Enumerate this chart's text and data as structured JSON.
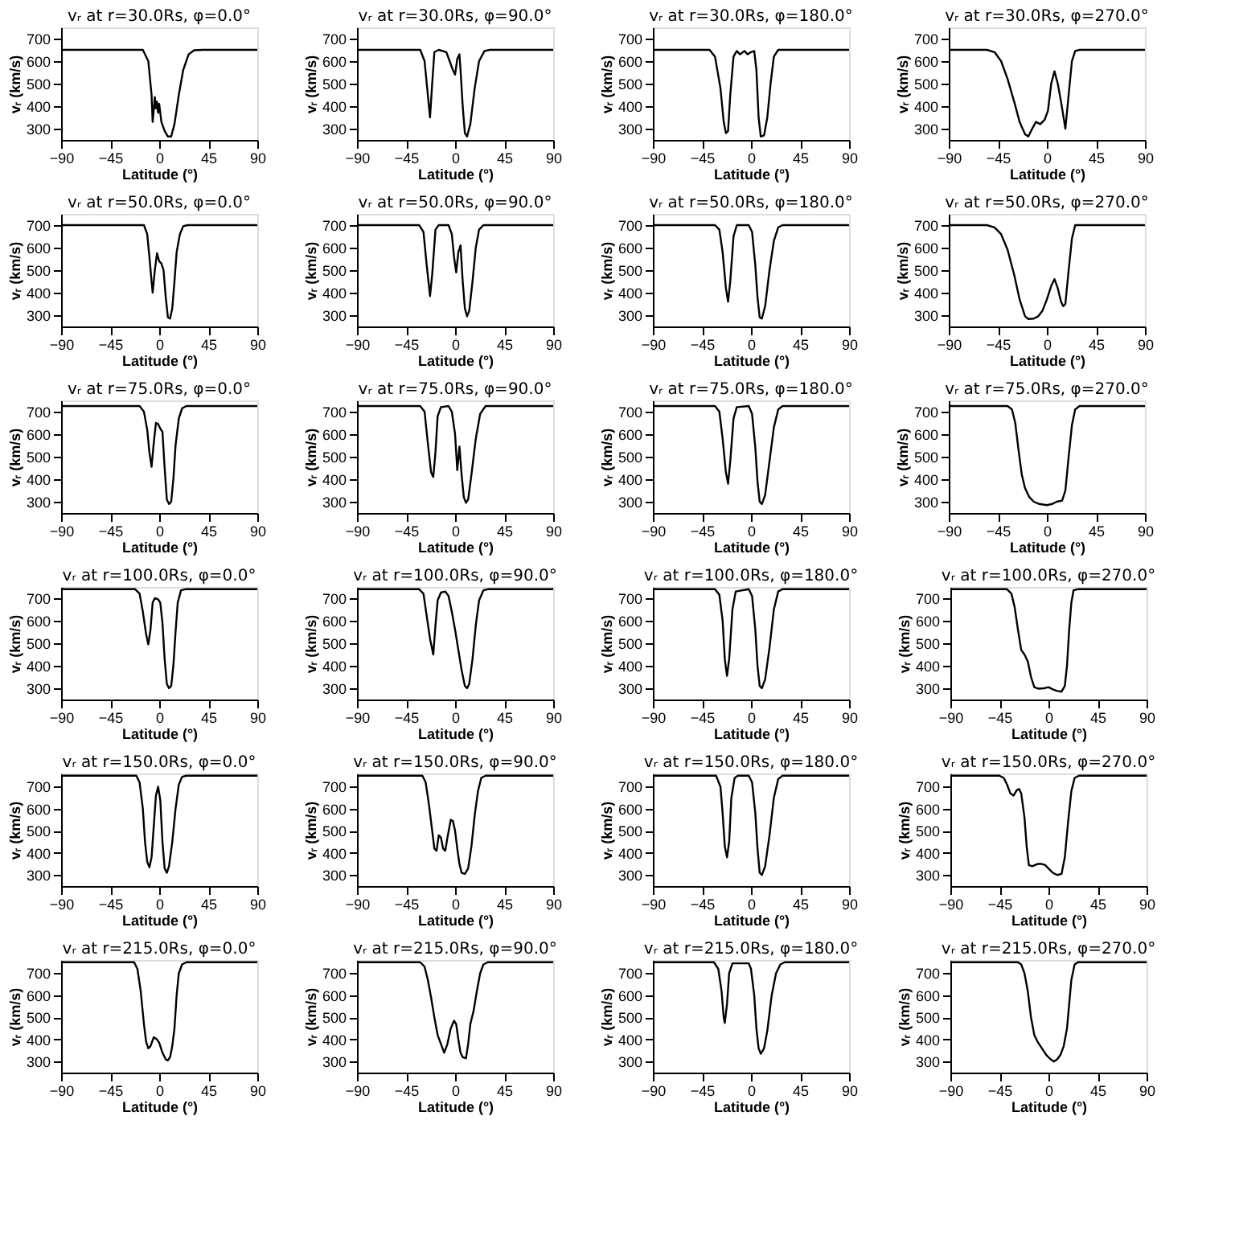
{
  "chart_data": [
    {
      "type": "line",
      "title": "vᵣ at r=30.0Rs, φ=0.0°",
      "xlabel": "Latitude (°)",
      "ylabel": "vᵣ (km/s)",
      "xlim": [
        -90,
        90
      ],
      "xticks": [
        -90,
        -45,
        0,
        45,
        90
      ],
      "ylim": [
        250,
        750
      ],
      "yticks": [
        300,
        400,
        500,
        600,
        700
      ],
      "grid": false,
      "color": "#000000",
      "x": [
        -90,
        -15,
        -10,
        -7,
        -6,
        -4,
        -3,
        -2,
        -1,
        0,
        2,
        5,
        8,
        11,
        14,
        18,
        22,
        27,
        32,
        40,
        90
      ],
      "values": [
        650,
        650,
        600,
        450,
        330,
        440,
        390,
        420,
        370,
        410,
        330,
        290,
        265,
        265,
        320,
        450,
        560,
        630,
        648,
        650,
        650
      ]
    },
    {
      "type": "line",
      "title": "vᵣ at r=30.0Rs, φ=90.0°",
      "xlabel": "Latitude (°)",
      "ylabel": "vᵣ (km/s)",
      "xlim": [
        -90,
        90
      ],
      "xticks": [
        -90,
        -45,
        0,
        45,
        90
      ],
      "ylim": [
        250,
        750
      ],
      "yticks": [
        300,
        400,
        500,
        600,
        700
      ],
      "grid": false,
      "color": "#000000",
      "x": [
        -90,
        -32,
        -28,
        -25,
        -23,
        -21,
        -19,
        -15,
        -8,
        -5,
        -2,
        0,
        2,
        4,
        5,
        7,
        9,
        11,
        14,
        18,
        22,
        27,
        32,
        90
      ],
      "values": [
        650,
        650,
        600,
        450,
        350,
        500,
        640,
        650,
        640,
        600,
        560,
        540,
        610,
        630,
        560,
        400,
        280,
        265,
        320,
        480,
        600,
        645,
        650,
        650
      ]
    },
    {
      "type": "line",
      "title": "vᵣ at r=30.0Rs, φ=180.0°",
      "xlabel": "Latitude (°)",
      "ylabel": "vᵣ (km/s)",
      "xlim": [
        -90,
        90
      ],
      "xticks": [
        -90,
        -45,
        0,
        45,
        90
      ],
      "ylim": [
        250,
        750
      ],
      "yticks": [
        300,
        400,
        500,
        600,
        700
      ],
      "grid": false,
      "color": "#000000",
      "x": [
        -90,
        -38,
        -33,
        -28,
        -25,
        -23,
        -21,
        -19,
        -16,
        -13,
        -10,
        -6,
        -3,
        0,
        3,
        5,
        7,
        9,
        12,
        15,
        18,
        21,
        25,
        90
      ],
      "values": [
        650,
        650,
        620,
        480,
        330,
        280,
        290,
        450,
        620,
        645,
        630,
        645,
        630,
        640,
        645,
        560,
        350,
        265,
        270,
        350,
        500,
        620,
        650,
        650
      ]
    },
    {
      "type": "line",
      "title": "vᵣ at r=30.0Rs, φ=270.0°",
      "xlabel": "Latitude (°)",
      "ylabel": "vᵣ (km/s)",
      "xlim": [
        -90,
        90
      ],
      "xticks": [
        -90,
        -45,
        0,
        45,
        90
      ],
      "ylim": [
        250,
        750
      ],
      "yticks": [
        300,
        400,
        500,
        600,
        700
      ],
      "grid": false,
      "color": "#000000",
      "x": [
        -90,
        -55,
        -48,
        -42,
        -36,
        -30,
        -25,
        -20,
        -17,
        -14,
        -10,
        -6,
        -2,
        1,
        4,
        7,
        10,
        13,
        16,
        17,
        20,
        23,
        26,
        30,
        90
      ],
      "values": [
        650,
        650,
        640,
        600,
        520,
        420,
        330,
        275,
        265,
        295,
        330,
        320,
        340,
        380,
        500,
        555,
        500,
        420,
        330,
        300,
        450,
        600,
        645,
        650,
        650
      ]
    },
    {
      "type": "line",
      "title": "vᵣ at r=50.0Rs, φ=0.0°",
      "xlabel": "Latitude (°)",
      "ylabel": "vᵣ (km/s)",
      "xlim": [
        -90,
        90
      ],
      "xticks": [
        -90,
        -45,
        0,
        45,
        90
      ],
      "ylim": [
        250,
        750
      ],
      "yticks": [
        300,
        400,
        500,
        600,
        700
      ],
      "grid": false,
      "color": "#000000",
      "x": [
        -90,
        -14,
        -11,
        -9,
        -7,
        -6,
        -4,
        -2,
        0,
        2,
        4,
        6,
        8,
        10,
        12,
        14,
        16,
        19,
        22,
        26,
        90
      ],
      "values": [
        700,
        700,
        660,
        560,
        450,
        400,
        500,
        575,
        540,
        530,
        500,
        380,
        290,
        285,
        330,
        450,
        580,
        660,
        695,
        700,
        700
      ]
    },
    {
      "type": "line",
      "title": "vᵣ at r=50.0Rs, φ=90.0°",
      "xlabel": "Latitude (°)",
      "ylabel": "vᵣ (km/s)",
      "xlim": [
        -90,
        90
      ],
      "xticks": [
        -90,
        -45,
        0,
        45,
        90
      ],
      "ylim": [
        250,
        750
      ],
      "yticks": [
        300,
        400,
        500,
        600,
        700
      ],
      "grid": false,
      "color": "#000000",
      "x": [
        -90,
        -33,
        -29,
        -26,
        -23,
        -21,
        -18,
        -15,
        -6,
        -3,
        -1,
        1,
        3,
        5,
        7,
        9,
        11,
        13,
        16,
        19,
        22,
        26,
        90
      ],
      "values": [
        700,
        700,
        670,
        520,
        385,
        480,
        680,
        700,
        700,
        660,
        560,
        490,
        580,
        610,
        450,
        330,
        295,
        320,
        450,
        600,
        680,
        700,
        700
      ]
    },
    {
      "type": "line",
      "title": "vᵣ at r=50.0Rs, φ=180.0°",
      "xlabel": "Latitude (°)",
      "ylabel": "vᵣ (km/s)",
      "xlim": [
        -90,
        90
      ],
      "xticks": [
        -90,
        -45,
        0,
        45,
        90
      ],
      "ylim": [
        250,
        750
      ],
      "yticks": [
        300,
        400,
        500,
        600,
        700
      ],
      "grid": false,
      "color": "#000000",
      "x": [
        -90,
        -33,
        -29,
        -26,
        -23,
        -21,
        -19,
        -16,
        -13,
        -2,
        1,
        4,
        6,
        8,
        10,
        13,
        17,
        21,
        25,
        29,
        90
      ],
      "values": [
        700,
        700,
        680,
        580,
        420,
        360,
        450,
        650,
        700,
        700,
        670,
        520,
        380,
        290,
        285,
        340,
        500,
        630,
        690,
        700,
        700
      ]
    },
    {
      "type": "line",
      "title": "vᵣ at r=50.0Rs, φ=270.0°",
      "xlabel": "Latitude (°)",
      "ylabel": "vᵣ (km/s)",
      "xlim": [
        -90,
        90
      ],
      "xticks": [
        -90,
        -45,
        0,
        45,
        90
      ],
      "ylim": [
        250,
        750
      ],
      "yticks": [
        300,
        400,
        500,
        600,
        700
      ],
      "grid": false,
      "color": "#000000",
      "x": [
        -90,
        -55,
        -48,
        -42,
        -36,
        -30,
        -25,
        -20,
        -17,
        -12,
        -8,
        -4,
        0,
        4,
        7,
        10,
        13,
        15,
        17,
        20,
        23,
        26,
        90
      ],
      "values": [
        700,
        700,
        690,
        660,
        590,
        480,
        370,
        295,
        283,
        285,
        295,
        320,
        370,
        430,
        460,
        420,
        360,
        340,
        350,
        500,
        640,
        700,
        700
      ]
    },
    {
      "type": "line",
      "title": "vᵣ at r=75.0Rs, φ=0.0°",
      "xlabel": "Latitude (°)",
      "ylabel": "vᵣ (km/s)",
      "xlim": [
        -90,
        90
      ],
      "xticks": [
        -90,
        -45,
        0,
        45,
        90
      ],
      "ylim": [
        250,
        750
      ],
      "yticks": [
        300,
        400,
        500,
        600,
        700
      ],
      "grid": false,
      "color": "#000000",
      "x": [
        -90,
        -18,
        -14,
        -11,
        -9,
        -7,
        -5,
        -3,
        -1,
        1,
        3,
        5,
        7,
        9,
        11,
        13,
        15,
        18,
        21,
        25,
        90
      ],
      "values": [
        725,
        725,
        700,
        620,
        520,
        455,
        560,
        650,
        645,
        625,
        610,
        450,
        310,
        290,
        300,
        400,
        550,
        670,
        715,
        725,
        725
      ]
    },
    {
      "type": "line",
      "title": "vᵣ at r=75.0Rs, φ=90.0°",
      "xlabel": "Latitude (°)",
      "ylabel": "vᵣ (km/s)",
      "xlim": [
        -90,
        90
      ],
      "xticks": [
        -90,
        -45,
        0,
        45,
        90
      ],
      "ylim": [
        250,
        750
      ],
      "yticks": [
        300,
        400,
        500,
        600,
        700
      ],
      "grid": false,
      "color": "#000000",
      "x": [
        -90,
        -32,
        -28,
        -25,
        -22,
        -20,
        -18,
        -16,
        -13,
        -6,
        -3,
        0,
        2,
        4,
        6,
        8,
        10,
        12,
        15,
        19,
        23,
        28,
        90
      ],
      "values": [
        725,
        725,
        700,
        560,
        430,
        410,
        520,
        680,
        720,
        725,
        700,
        600,
        440,
        545,
        420,
        320,
        295,
        310,
        420,
        580,
        690,
        725,
        725
      ]
    },
    {
      "type": "line",
      "title": "vᵣ at r=75.0Rs, φ=180.0°",
      "xlabel": "Latitude (°)",
      "ylabel": "vᵣ (km/s)",
      "xlim": [
        -90,
        90
      ],
      "xticks": [
        -90,
        -45,
        0,
        45,
        90
      ],
      "ylim": [
        250,
        750
      ],
      "yticks": [
        300,
        400,
        500,
        600,
        700
      ],
      "grid": false,
      "color": "#000000",
      "x": [
        -90,
        -33,
        -29,
        -26,
        -23,
        -21,
        -19,
        -16,
        -13,
        -2,
        1,
        4,
        6,
        8,
        10,
        13,
        17,
        21,
        25,
        29,
        90
      ],
      "values": [
        725,
        725,
        700,
        580,
        430,
        380,
        480,
        670,
        720,
        725,
        690,
        540,
        390,
        300,
        290,
        330,
        480,
        630,
        710,
        725,
        725
      ]
    },
    {
      "type": "line",
      "title": "vᵣ at r=75.0Rs, φ=270.0°",
      "xlabel": "Latitude (°)",
      "ylabel": "vᵣ (km/s)",
      "xlim": [
        -90,
        90
      ],
      "xticks": [
        -90,
        -45,
        0,
        45,
        90
      ],
      "ylim": [
        250,
        750
      ],
      "yticks": [
        300,
        400,
        500,
        600,
        700
      ],
      "grid": false,
      "color": "#000000",
      "x": [
        -90,
        -36,
        -32,
        -29,
        -26,
        -23,
        -20,
        -16,
        -12,
        -7,
        0,
        5,
        9,
        14,
        17,
        20,
        23,
        26,
        30,
        90
      ],
      "values": [
        725,
        725,
        710,
        650,
        530,
        420,
        360,
        320,
        300,
        290,
        285,
        290,
        300,
        305,
        350,
        500,
        640,
        710,
        725,
        725
      ]
    },
    {
      "type": "line",
      "title": "vᵣ at r=100.0Rs, φ=0.0°",
      "xlabel": "Latitude (°)",
      "ylabel": "vᵣ (km/s)",
      "xlim": [
        -90,
        90
      ],
      "xticks": [
        -90,
        -45,
        0,
        45,
        90
      ],
      "ylim": [
        250,
        750
      ],
      "yticks": [
        300,
        400,
        500,
        600,
        700
      ],
      "grid": false,
      "color": "#000000",
      "x": [
        -90,
        -22,
        -18,
        -15,
        -12,
        -10,
        -8,
        -6,
        -4,
        -1,
        1,
        3,
        5,
        7,
        9,
        11,
        13,
        15,
        17,
        20,
        24,
        90
      ],
      "values": [
        740,
        740,
        720,
        640,
        540,
        495,
        560,
        680,
        700,
        695,
        680,
        590,
        430,
        320,
        300,
        310,
        400,
        550,
        680,
        735,
        740,
        740
      ]
    },
    {
      "type": "line",
      "title": "vᵣ at r=100.0Rs, φ=90.0°",
      "xlabel": "Latitude (°)",
      "ylabel": "vᵣ (km/s)",
      "xlim": [
        -90,
        90
      ],
      "xticks": [
        -90,
        -45,
        0,
        45,
        90
      ],
      "ylim": [
        250,
        750
      ],
      "yticks": [
        300,
        400,
        500,
        600,
        700
      ],
      "grid": false,
      "color": "#000000",
      "x": [
        -90,
        -33,
        -29,
        -26,
        -23,
        -20,
        -18,
        -16,
        -13,
        -9,
        -6,
        -3,
        0,
        3,
        6,
        9,
        11,
        13,
        16,
        19,
        22,
        26,
        30,
        90
      ],
      "values": [
        740,
        740,
        720,
        620,
        520,
        450,
        580,
        690,
        725,
        730,
        710,
        640,
        560,
        470,
        380,
        310,
        300,
        320,
        430,
        580,
        690,
        735,
        740,
        740
      ]
    },
    {
      "type": "line",
      "title": "vᵣ at r=100.0Rs, φ=180.0°",
      "xlabel": "Latitude (°)",
      "ylabel": "vᵣ (km/s)",
      "xlim": [
        -90,
        90
      ],
      "xticks": [
        -90,
        -45,
        0,
        45,
        90
      ],
      "ylim": [
        250,
        750
      ],
      "yticks": [
        300,
        400,
        500,
        600,
        700
      ],
      "grid": false,
      "color": "#000000",
      "x": [
        -90,
        -33,
        -29,
        -26,
        -24,
        -22,
        -20,
        -17,
        -14,
        -2,
        1,
        4,
        6,
        8,
        10,
        13,
        17,
        21,
        25,
        29,
        90
      ],
      "values": [
        740,
        740,
        715,
        600,
        430,
        355,
        430,
        650,
        730,
        740,
        710,
        560,
        400,
        310,
        300,
        340,
        480,
        650,
        730,
        740,
        740
      ]
    },
    {
      "type": "line",
      "title": "vᵣ at r=100.0Rs, φ=270.0°",
      "xlabel": "Latitude (°)",
      "ylabel": "vᵣ (km/s)",
      "xlim": [
        -90,
        90
      ],
      "xticks": [
        -90,
        -45,
        0,
        45,
        90
      ],
      "ylim": [
        250,
        750
      ],
      "yticks": [
        300,
        400,
        500,
        600,
        700
      ],
      "grid": false,
      "color": "#000000",
      "x": [
        -90,
        -38,
        -34,
        -31,
        -28,
        -25,
        -22,
        -19,
        -16,
        -13,
        -9,
        -4,
        0,
        4,
        8,
        12,
        15,
        17,
        19,
        21,
        23,
        27,
        90
      ],
      "values": [
        740,
        740,
        720,
        660,
        560,
        470,
        450,
        420,
        350,
        305,
        298,
        300,
        305,
        295,
        288,
        285,
        310,
        400,
        560,
        680,
        735,
        740,
        740
      ]
    },
    {
      "type": "line",
      "title": "vᵣ at r=150.0Rs, φ=0.0°",
      "xlabel": "Latitude (°)",
      "ylabel": "vᵣ (km/s)",
      "xlim": [
        -90,
        90
      ],
      "xticks": [
        -90,
        -45,
        0,
        45,
        90
      ],
      "ylim": [
        250,
        760
      ],
      "yticks": [
        300,
        400,
        500,
        600,
        700
      ],
      "grid": false,
      "color": "#000000",
      "x": [
        -90,
        -21,
        -18,
        -15,
        -13,
        -11,
        -9,
        -7,
        -5,
        -3,
        -1,
        1,
        3,
        5,
        7,
        9,
        12,
        15,
        18,
        21,
        25,
        90
      ],
      "values": [
        750,
        750,
        720,
        600,
        450,
        360,
        335,
        380,
        520,
        660,
        700,
        640,
        450,
        330,
        310,
        340,
        450,
        600,
        710,
        745,
        750,
        750
      ]
    },
    {
      "type": "line",
      "title": "vᵣ at r=150.0Rs, φ=90.0°",
      "xlabel": "Latitude (°)",
      "ylabel": "vᵣ (km/s)",
      "xlim": [
        -90,
        90
      ],
      "xticks": [
        -90,
        -45,
        0,
        45,
        90
      ],
      "ylim": [
        250,
        760
      ],
      "yticks": [
        300,
        400,
        500,
        600,
        700
      ],
      "grid": false,
      "color": "#000000",
      "x": [
        -90,
        -30,
        -27,
        -24,
        -21,
        -19,
        -17,
        -15,
        -13,
        -11,
        -9,
        -7,
        -4,
        -2,
        0,
        2,
        4,
        6,
        9,
        12,
        15,
        18,
        21,
        24,
        28,
        90
      ],
      "values": [
        750,
        750,
        720,
        620,
        500,
        420,
        410,
        480,
        470,
        420,
        410,
        470,
        550,
        545,
        500,
        420,
        350,
        310,
        305,
        330,
        430,
        570,
        680,
        740,
        750,
        750
      ]
    },
    {
      "type": "line",
      "title": "vᵣ at r=150.0Rs, φ=180.0°",
      "xlabel": "Latitude (°)",
      "ylabel": "vᵣ (km/s)",
      "xlim": [
        -90,
        90
      ],
      "xticks": [
        -90,
        -45,
        0,
        45,
        90
      ],
      "ylim": [
        250,
        760
      ],
      "yticks": [
        300,
        400,
        500,
        600,
        700
      ],
      "grid": false,
      "color": "#000000",
      "x": [
        -90,
        -32,
        -28,
        -26,
        -24,
        -22,
        -20,
        -18,
        -15,
        -12,
        -2,
        1,
        4,
        6,
        8,
        10,
        13,
        17,
        21,
        25,
        29,
        90
      ],
      "values": [
        750,
        750,
        700,
        580,
        430,
        380,
        450,
        650,
        740,
        750,
        750,
        720,
        580,
        420,
        310,
        300,
        340,
        480,
        650,
        735,
        750,
        750
      ]
    },
    {
      "type": "line",
      "title": "vᵣ at r=150.0Rs, φ=270.0°",
      "xlabel": "Latitude (°)",
      "ylabel": "vᵣ (km/s)",
      "xlim": [
        -90,
        90
      ],
      "xticks": [
        -90,
        -45,
        0,
        45,
        90
      ],
      "ylim": [
        250,
        760
      ],
      "yticks": [
        300,
        400,
        500,
        600,
        700
      ],
      "grid": false,
      "color": "#000000",
      "x": [
        -90,
        -45,
        -41,
        -38,
        -35,
        -32,
        -29,
        -27,
        -25,
        -22,
        -20,
        -18,
        -15,
        -10,
        -6,
        -3,
        0,
        4,
        8,
        12,
        15,
        18,
        21,
        24,
        28,
        90
      ],
      "values": [
        750,
        750,
        740,
        710,
        670,
        660,
        685,
        690,
        670,
        560,
        430,
        345,
        340,
        350,
        350,
        345,
        330,
        310,
        300,
        305,
        380,
        540,
        680,
        740,
        750,
        750
      ]
    },
    {
      "type": "line",
      "title": "vᵣ at r=215.0Rs, φ=0.0°",
      "xlabel": "Latitude (°)",
      "ylabel": "vᵣ (km/s)",
      "xlim": [
        -90,
        90
      ],
      "xticks": [
        -90,
        -45,
        0,
        45,
        90
      ],
      "ylim": [
        250,
        760
      ],
      "yticks": [
        300,
        400,
        500,
        600,
        700
      ],
      "grid": false,
      "color": "#000000",
      "x": [
        -90,
        -23,
        -20,
        -17,
        -14,
        -12,
        -10,
        -8,
        -5,
        -2,
        0,
        3,
        6,
        8,
        10,
        12,
        14,
        16,
        18,
        21,
        25,
        90
      ],
      "values": [
        750,
        750,
        720,
        620,
        470,
        390,
        360,
        370,
        410,
        400,
        385,
        340,
        310,
        305,
        320,
        370,
        450,
        600,
        700,
        740,
        750,
        750
      ]
    },
    {
      "type": "line",
      "title": "vᵣ at r=215.0Rs, φ=90.0°",
      "xlabel": "Latitude (°)",
      "ylabel": "vᵣ (km/s)",
      "xlim": [
        -90,
        90
      ],
      "xticks": [
        -90,
        -45,
        0,
        45,
        90
      ],
      "ylim": [
        250,
        760
      ],
      "yticks": [
        300,
        400,
        500,
        600,
        700
      ],
      "grid": false,
      "color": "#000000",
      "x": [
        -90,
        -32,
        -28,
        -25,
        -22,
        -19,
        -16,
        -13,
        -10,
        -7,
        -4,
        -1,
        1,
        3,
        5,
        7,
        10,
        12,
        14,
        17,
        20,
        23,
        26,
        30,
        90
      ],
      "values": [
        750,
        750,
        730,
        670,
        590,
        500,
        420,
        380,
        340,
        380,
        450,
        485,
        470,
        400,
        340,
        320,
        315,
        380,
        470,
        530,
        620,
        700,
        740,
        750,
        750
      ]
    },
    {
      "type": "line",
      "title": "vᵣ at r=215.0Rs, φ=180.0°",
      "xlabel": "Latitude (°)",
      "ylabel": "vᵣ (km/s)",
      "xlim": [
        -90,
        90
      ],
      "xticks": [
        -90,
        -45,
        0,
        45,
        90
      ],
      "ylim": [
        250,
        760
      ],
      "yticks": [
        300,
        400,
        500,
        600,
        700
      ],
      "grid": false,
      "color": "#000000",
      "x": [
        -90,
        -34,
        -30,
        -27,
        -25,
        -24,
        -22,
        -20,
        -17,
        -2,
        0,
        3,
        5,
        7,
        9,
        12,
        15,
        19,
        23,
        27,
        31,
        90
      ],
      "values": [
        750,
        750,
        720,
        620,
        500,
        475,
        560,
        700,
        745,
        745,
        720,
        600,
        450,
        360,
        335,
        360,
        440,
        600,
        700,
        740,
        750,
        750
      ]
    },
    {
      "type": "line",
      "title": "vᵣ at r=215.0Rs, φ=270.0°",
      "xlabel": "Latitude (°)",
      "ylabel": "vᵣ (km/s)",
      "xlim": [
        -90,
        90
      ],
      "xticks": [
        -90,
        -45,
        0,
        45,
        90
      ],
      "ylim": [
        250,
        760
      ],
      "yticks": [
        300,
        400,
        500,
        600,
        700
      ],
      "grid": false,
      "color": "#000000",
      "x": [
        -90,
        -28,
        -25,
        -22,
        -19,
        -16,
        -13,
        -10,
        -6,
        -2,
        2,
        5,
        8,
        11,
        14,
        17,
        19,
        21,
        24,
        27,
        90
      ],
      "values": [
        750,
        750,
        740,
        700,
        620,
        500,
        420,
        390,
        360,
        330,
        310,
        300,
        310,
        330,
        370,
        450,
        560,
        670,
        740,
        750,
        750
      ]
    }
  ]
}
